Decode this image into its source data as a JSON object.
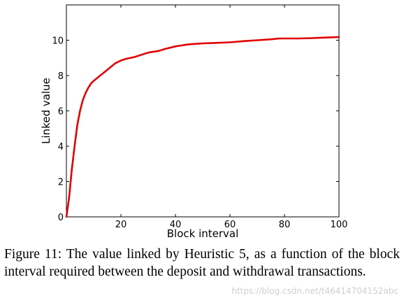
{
  "chart_data": {
    "type": "line",
    "title": "",
    "xlabel": "Block interval",
    "ylabel": "Linked value",
    "xlim": [
      0,
      100
    ],
    "ylim": [
      0,
      12
    ],
    "xticks": [
      20,
      40,
      60,
      80,
      100
    ],
    "yticks": [
      0,
      2,
      4,
      6,
      8,
      10
    ],
    "xtick_labels": [
      "20",
      "40",
      "60",
      "80",
      "100"
    ],
    "ytick_labels": [
      "0",
      "2",
      "4",
      "6",
      "8",
      "10"
    ],
    "grid": false,
    "legend": "none",
    "series": [
      {
        "color": "#e00000",
        "x": [
          0,
          1,
          2,
          3,
          4,
          5,
          6,
          7,
          8,
          9,
          10,
          12,
          14,
          16,
          18,
          20,
          22,
          25,
          28,
          30,
          34,
          36,
          40,
          42,
          44,
          46,
          50,
          55,
          60,
          65,
          70,
          75,
          78,
          80,
          85,
          90,
          95,
          100
        ],
        "y": [
          0,
          1.1,
          2.7,
          4.0,
          5.2,
          6.0,
          6.6,
          7.0,
          7.3,
          7.55,
          7.7,
          7.95,
          8.2,
          8.45,
          8.7,
          8.85,
          8.95,
          9.05,
          9.2,
          9.3,
          9.4,
          9.5,
          9.65,
          9.7,
          9.75,
          9.78,
          9.82,
          9.85,
          9.88,
          9.95,
          10.0,
          10.05,
          10.1,
          10.1,
          10.1,
          10.12,
          10.15,
          10.18
        ]
      }
    ]
  },
  "caption": {
    "text": "Figure 11: The value linked by Heuristic 5, as a function of the block interval required between the deposit and withdrawal transactions."
  },
  "watermark": {
    "text": "https://blog.csdn.net/t46414704152abc"
  }
}
